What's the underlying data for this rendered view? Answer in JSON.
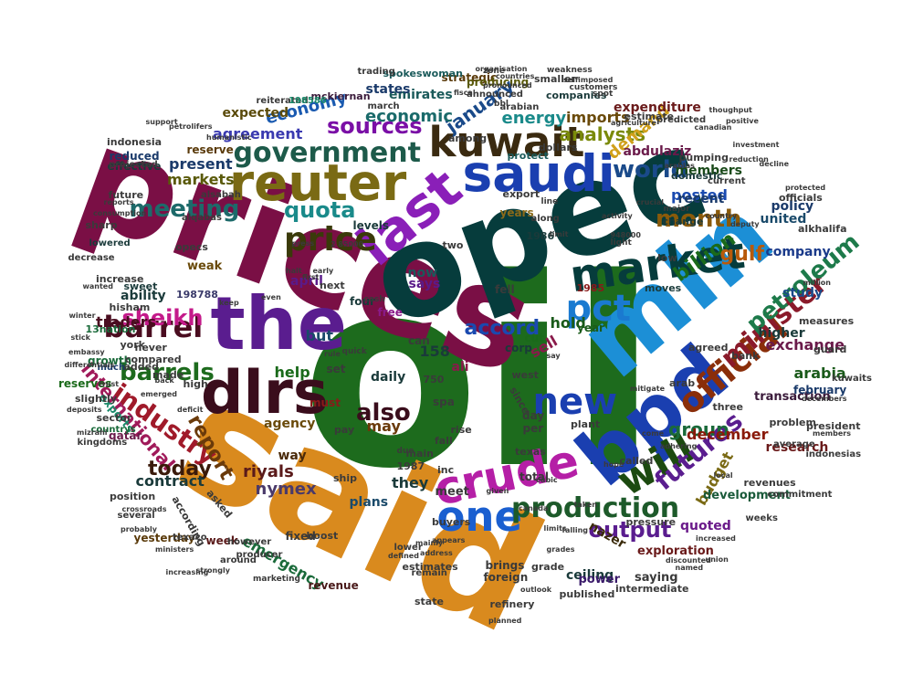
{
  "words": [
    {
      "text": "oil",
      "color": "#1d6b1d"
    },
    {
      "text": "said",
      "color": "#d98a1e"
    },
    {
      "text": "prices",
      "color": "#7a0f45"
    },
    {
      "text": "opec",
      "color": "#063c3c"
    },
    {
      "text": "mln",
      "color": "#1c8fd6"
    },
    {
      "text": "the",
      "color": "#5a1d8f"
    },
    {
      "text": "bpd",
      "color": "#1a3fb0"
    },
    {
      "text": "dlrs",
      "color": "#3a0d1c"
    },
    {
      "text": "market",
      "color": "#063c3c"
    },
    {
      "text": "reuter",
      "color": "#7a6a14"
    },
    {
      "text": "saudi",
      "color": "#1a3fb0"
    },
    {
      "text": "last",
      "color": "#8a1fb8"
    },
    {
      "text": "crude",
      "color": "#b51fa6"
    },
    {
      "text": "will",
      "color": "#1c4a10"
    },
    {
      "text": "kuwait",
      "color": "#3a2a10"
    },
    {
      "text": "official",
      "color": "#8a2e0a"
    },
    {
      "text": "one",
      "color": "#1a5fd0"
    },
    {
      "text": "government",
      "color": "#1d5a4a"
    },
    {
      "text": "new",
      "color": "#1a3fb0"
    },
    {
      "text": "barrel",
      "color": "#4a0d20"
    },
    {
      "text": "price",
      "color": "#3a3a0a"
    },
    {
      "text": "pct",
      "color": "#1a7ad0"
    },
    {
      "text": "production",
      "color": "#1d5a2a"
    },
    {
      "text": "industry",
      "color": "#a01a2a"
    },
    {
      "text": "sheikh",
      "color": "#c41a8a"
    },
    {
      "text": "minister",
      "color": "#8a1a2a"
    },
    {
      "text": "meeting",
      "color": "#1d6a6a"
    },
    {
      "text": "world",
      "color": "#1a4a8a"
    },
    {
      "text": "barrels",
      "color": "#1d6b1d"
    },
    {
      "text": "petroleum",
      "color": "#1d7a4a"
    },
    {
      "text": "month",
      "color": "#8a5a0a"
    },
    {
      "text": "sources",
      "color": "#7a0fa6"
    },
    {
      "text": "quota",
      "color": "#1a8a8a"
    },
    {
      "text": "international",
      "color": "#a01a5a"
    },
    {
      "text": "futures",
      "color": "#5a1d8f"
    },
    {
      "text": "output",
      "color": "#5a1d8f"
    },
    {
      "text": "report",
      "color": "#6a3a0a"
    },
    {
      "text": "also",
      "color": "#3a0d1c"
    },
    {
      "text": "billion",
      "color": "#1a6a1a"
    },
    {
      "text": "analysts",
      "color": "#7a8a0a"
    },
    {
      "text": "gulf",
      "color": "#b85a0a"
    },
    {
      "text": "january",
      "color": "#1a4a8a"
    },
    {
      "text": "today",
      "color": "#3a1a0a"
    },
    {
      "text": "accord",
      "color": "#1a4ab0"
    },
    {
      "text": "group",
      "color": "#1a6a3a"
    },
    {
      "text": "demand",
      "color": "#d0a01a"
    },
    {
      "text": "economic",
      "color": "#1a6a6a"
    },
    {
      "text": "energy",
      "color": "#1a8a8a"
    },
    {
      "text": "economy",
      "color": "#1a5ab0"
    },
    {
      "text": "imports",
      "color": "#6a4a0a"
    },
    {
      "text": "agreement",
      "color": "#3a3ab0"
    },
    {
      "text": "markets",
      "color": "#5a5a0a"
    },
    {
      "text": "present",
      "color": "#1a3a6a"
    },
    {
      "text": "posted",
      "color": "#1a4ab0"
    },
    {
      "text": "traders",
      "color": "#4a0d20"
    },
    {
      "text": "help",
      "color": "#1a6a1a"
    },
    {
      "text": "but",
      "color": "#1a4a6a"
    },
    {
      "text": "exchange",
      "color": "#6a1a4a"
    },
    {
      "text": "december",
      "color": "#8a1a0a"
    },
    {
      "text": "budget",
      "color": "#7a6a14"
    },
    {
      "text": "nymex",
      "color": "#4a3a6a"
    },
    {
      "text": "riyals",
      "color": "#5a1a1a"
    },
    {
      "text": "they",
      "color": "#1a3a3a"
    },
    {
      "text": "may",
      "color": "#6a3a0a"
    },
    {
      "text": "daily",
      "color": "#1a3a3a"
    },
    {
      "text": "emergency",
      "color": "#1a6a3a"
    },
    {
      "text": "contract",
      "color": "#1a3a3a"
    },
    {
      "text": "agency",
      "color": "#6a4a0a"
    },
    {
      "text": "arabia",
      "color": "#1a5a1a"
    },
    {
      "text": "hold",
      "color": "#1a5a1a"
    },
    {
      "text": "sell",
      "color": "#8a1a4a"
    },
    {
      "text": "quoted",
      "color": "#6a1a8a"
    },
    {
      "text": "research",
      "color": "#6a1a1a"
    },
    {
      "text": "company",
      "color": "#1a3a8a"
    },
    {
      "text": "members",
      "color": "#1a4a1a"
    },
    {
      "text": "united",
      "color": "#1a4a6a"
    },
    {
      "text": "policy",
      "color": "#1a3a6a"
    },
    {
      "text": "abdulaziz",
      "color": "#6a1a4a"
    },
    {
      "text": "expenditure",
      "color": "#6a1a1a"
    },
    {
      "text": "emirates",
      "color": "#1a5a5a"
    },
    {
      "text": "states",
      "color": "#1a3a6a"
    },
    {
      "text": "expected",
      "color": "#5a4a0a"
    },
    {
      "text": "reserve",
      "color": "#5a3a0a"
    },
    {
      "text": "reserves",
      "color": "#1a6a1a"
    },
    {
      "text": "growth",
      "color": "#1a6a3a"
    },
    {
      "text": "exports",
      "color": "#1a8a6a"
    },
    {
      "text": "ability",
      "color": "#1a3a3a"
    },
    {
      "text": "says",
      "color": "#5a1a8a"
    },
    {
      "text": "recent",
      "color": "#1a3a6a"
    },
    {
      "text": "year",
      "color": "#1a5a1a"
    },
    {
      "text": "study",
      "color": "#1a4a8a"
    },
    {
      "text": "higher",
      "color": "#1a3a3a"
    },
    {
      "text": "ceiling",
      "color": "#1a3a3a"
    },
    {
      "text": "nazer",
      "color": "#3a2a0a"
    },
    {
      "text": "exploration",
      "color": "#6a1a1a"
    },
    {
      "text": "saying",
      "color": "#3a3a3a"
    },
    {
      "text": "power",
      "color": "#3a1a6a"
    },
    {
      "text": "development",
      "color": "#1a5a3a"
    },
    {
      "text": "transaction",
      "color": "#3a1a3a"
    },
    {
      "text": "weak",
      "color": "#6a4a0a"
    },
    {
      "text": "qatar",
      "color": "#6a1a4a"
    },
    {
      "text": "effective",
      "color": "#1a3a3a"
    },
    {
      "text": "reduced",
      "color": "#1a3a6a"
    },
    {
      "text": "yesterday",
      "color": "#5a3a0a"
    },
    {
      "text": "week",
      "color": "#5a1a1a"
    },
    {
      "text": "revenue",
      "color": "#4a1a1a"
    },
    {
      "text": "plans",
      "color": "#1a4a6a"
    },
    {
      "text": "fixed",
      "color": "#3a3a3a"
    },
    {
      "text": "way",
      "color": "#4a2a0a"
    },
    {
      "text": "158",
      "color": "#1a3a3a"
    },
    {
      "text": "ali",
      "color": "#8a1a4a"
    },
    {
      "text": "free",
      "color": "#8a1a8a"
    },
    {
      "text": "april",
      "color": "#5a1a8a"
    },
    {
      "text": "four",
      "color": "#1a3a3a"
    },
    {
      "text": "corp",
      "color": "#1a3a3a"
    },
    {
      "text": "cut",
      "color": "#1a6a1a"
    },
    {
      "text": "fell",
      "color": "#3a3a3a"
    },
    {
      "text": "now",
      "color": "#1a5a5a"
    },
    {
      "text": "levels",
      "color": "#1a3a3a"
    },
    {
      "text": "years",
      "color": "#8a6a1a"
    },
    {
      "text": "export",
      "color": "#3a3a3a"
    },
    {
      "text": "change",
      "color": "#1a3a3a"
    },
    {
      "text": "domestic",
      "color": "#1a3a3a"
    },
    {
      "text": "low",
      "color": "#3a3a3a"
    },
    {
      "text": "1985",
      "color": "#8a1a1a"
    },
    {
      "text": "moves",
      "color": "#1a3a3a"
    },
    {
      "text": "1986",
      "color": "#1a3a3a"
    },
    {
      "text": "strategic",
      "color": "#5a3a0a"
    },
    {
      "text": "producing",
      "color": "#5a5a0a"
    },
    {
      "text": "among",
      "color": "#3a3a3a"
    },
    {
      "text": "protect",
      "color": "#1a5a5a"
    },
    {
      "text": "estimate",
      "color": "#3a3a3a"
    },
    {
      "text": "companies",
      "color": "#1a3a3a"
    },
    {
      "text": "smaller",
      "color": "#3a3a3a"
    },
    {
      "text": "dollars",
      "color": "#3a3a3a"
    },
    {
      "text": "spokeswoman",
      "color": "#1a5a5a"
    },
    {
      "text": "mckiernan",
      "color": "#3a1a3a"
    },
    {
      "text": "reiterated",
      "color": "#3a3a3a"
    },
    {
      "text": "198586",
      "color": "#1a8a6a"
    },
    {
      "text": "198788",
      "color": "#3a3a6a"
    },
    {
      "text": "sweet",
      "color": "#1a3a3a"
    },
    {
      "text": "opecs",
      "color": "#3a3a3a"
    },
    {
      "text": "increase",
      "color": "#3a3a3a"
    },
    {
      "text": "decrease",
      "color": "#3a3a3a"
    },
    {
      "text": "lowered",
      "color": "#1a3a3a"
    },
    {
      "text": "hisham",
      "color": "#3a3a3a"
    },
    {
      "text": "13nation",
      "color": "#1a6a3a"
    },
    {
      "text": "compared",
      "color": "#3a3a3a"
    },
    {
      "text": "slightly",
      "color": "#3a3a3a"
    },
    {
      "text": "sector",
      "color": "#3a3a3a"
    },
    {
      "text": "countrys",
      "color": "#1a6a3a"
    },
    {
      "text": "kingdoms",
      "color": "#3a3a3a"
    },
    {
      "text": "added",
      "color": "#3a3a3a"
    },
    {
      "text": "made",
      "color": "#3a3a3a"
    },
    {
      "text": "high",
      "color": "#3a3a3a"
    },
    {
      "text": "much",
      "color": "#1a3a6a"
    },
    {
      "text": "never",
      "color": "#3a3a3a"
    },
    {
      "text": "york",
      "color": "#3a3a3a"
    },
    {
      "text": "must",
      "color": "#8a1a1a"
    },
    {
      "text": "set",
      "color": "#3a3a3a"
    },
    {
      "text": "can",
      "color": "#3a3a3a"
    },
    {
      "text": "meet",
      "color": "#3a3a3a"
    },
    {
      "text": "inc",
      "color": "#3a3a3a"
    },
    {
      "text": "fall",
      "color": "#3a3a3a"
    },
    {
      "text": "rise",
      "color": "#3a3a3a"
    },
    {
      "text": "texas",
      "color": "#3a3a3a"
    },
    {
      "text": "total",
      "color": "#3a3a3a"
    },
    {
      "text": "per",
      "color": "#3a3a3a"
    },
    {
      "text": "day",
      "color": "#3a3a3a"
    },
    {
      "text": "three",
      "color": "#3a3a3a"
    },
    {
      "text": "february",
      "color": "#1a3a6a"
    },
    {
      "text": "measures",
      "color": "#3a3a3a"
    },
    {
      "text": "president",
      "color": "#3a3a3a"
    },
    {
      "text": "officials",
      "color": "#3a3a3a"
    },
    {
      "text": "alkhalifa",
      "color": "#3a3a3a"
    },
    {
      "text": "agreed",
      "color": "#3a3a3a"
    },
    {
      "text": "bank",
      "color": "#3a3a3a"
    },
    {
      "text": "pumping",
      "color": "#3a3a3a"
    },
    {
      "text": "arab",
      "color": "#3a3a3a"
    },
    {
      "text": "revenues",
      "color": "#3a3a3a"
    },
    {
      "text": "called",
      "color": "#3a3a3a"
    },
    {
      "text": "plant",
      "color": "#3a3a3a"
    },
    {
      "text": "problem",
      "color": "#3a3a3a"
    },
    {
      "text": "indonesias",
      "color": "#3a3a3a"
    },
    {
      "text": "guard",
      "color": "#3a3a3a"
    },
    {
      "text": "kuwaits",
      "color": "#3a3a3a"
    },
    {
      "text": "average",
      "color": "#3a3a3a"
    },
    {
      "text": "weeks",
      "color": "#3a3a3a"
    },
    {
      "text": "commitment",
      "color": "#3a3a3a"
    },
    {
      "text": "intermediate",
      "color": "#3a3a3a"
    },
    {
      "text": "published",
      "color": "#3a3a3a"
    },
    {
      "text": "brings",
      "color": "#3a3a3a"
    },
    {
      "text": "foreign",
      "color": "#3a3a3a"
    },
    {
      "text": "refinery",
      "color": "#3a3a3a"
    },
    {
      "text": "grade",
      "color": "#3a3a3a"
    },
    {
      "text": "buyers",
      "color": "#3a3a3a"
    },
    {
      "text": "estimates",
      "color": "#3a3a3a"
    },
    {
      "text": "remain",
      "color": "#3a3a3a"
    },
    {
      "text": "lower",
      "color": "#3a3a3a"
    },
    {
      "text": "boost",
      "color": "#3a3a3a"
    },
    {
      "text": "ship",
      "color": "#3a3a3a"
    },
    {
      "text": "state",
      "color": "#3a3a3a"
    },
    {
      "text": "according",
      "color": "#3a3a3a"
    },
    {
      "text": "asked",
      "color": "#3a3a3a"
    },
    {
      "text": "position",
      "color": "#3a3a3a"
    },
    {
      "text": "texaco",
      "color": "#3a3a3a"
    },
    {
      "text": "however",
      "color": "#3a3a3a"
    },
    {
      "text": "producer",
      "color": "#3a3a3a"
    },
    {
      "text": "around",
      "color": "#3a3a3a"
    },
    {
      "text": "several",
      "color": "#3a3a3a"
    },
    {
      "text": "marketing",
      "color": "#3a3a3a"
    },
    {
      "text": "pressure",
      "color": "#3a3a3a"
    },
    {
      "text": "1987",
      "color": "#3a3a3a"
    },
    {
      "text": "quick",
      "color": "#3a3a3a"
    },
    {
      "text": "sharp",
      "color": "#3a3a3a"
    },
    {
      "text": "future",
      "color": "#3a3a3a"
    },
    {
      "text": "projected",
      "color": "#3a3a3a"
    },
    {
      "text": "indonesia",
      "color": "#3a3a3a"
    },
    {
      "text": "alqabas",
      "color": "#3a3a3a"
    },
    {
      "text": "alsabah",
      "color": "#3a3a3a"
    },
    {
      "text": "current",
      "color": "#3a3a3a"
    },
    {
      "text": "predicted",
      "color": "#3a3a3a"
    },
    {
      "text": "arabian",
      "color": "#3a3a3a"
    },
    {
      "text": "march",
      "color": "#3a3a3a"
    },
    {
      "text": "announced",
      "color": "#3a3a3a"
    },
    {
      "text": "weakness",
      "color": "#3a3a3a"
    },
    {
      "text": "customers",
      "color": "#3a3a3a"
    },
    {
      "text": "spot",
      "color": "#3a3a3a"
    },
    {
      "text": "major",
      "color": "#3a3a3a"
    },
    {
      "text": "cash",
      "color": "#3a3a3a"
    },
    {
      "text": "two",
      "color": "#3a3a3a"
    },
    {
      "text": "along",
      "color": "#3a3a3a"
    },
    {
      "text": "light",
      "color": "#3a3a3a"
    },
    {
      "text": "2 85000",
      "color": "#3a3a3a"
    },
    {
      "text": "948000",
      "color": "#3a3a3a"
    },
    {
      "text": "next",
      "color": "#3a3a3a"
    },
    {
      "text": "west",
      "color": "#3a3a3a"
    },
    {
      "text": "since",
      "color": "#3a3a3a"
    },
    {
      "text": "spa",
      "color": "#3a3a3a"
    },
    {
      "text": "750",
      "color": "#3a3a3a"
    },
    {
      "text": "main",
      "color": "#3a3a3a"
    },
    {
      "text": "due",
      "color": "#3a3a3a"
    },
    {
      "text": "pay",
      "color": "#3a3a3a"
    },
    {
      "text": "bbl",
      "color": "#3a3a3a"
    },
    {
      "text": "line",
      "color": "#3a3a3a"
    },
    {
      "text": "zone",
      "color": "#3a3a3a"
    },
    {
      "text": "trading",
      "color": "#3a3a3a"
    },
    {
      "text": "organisation",
      "color": "#3a3a3a"
    },
    {
      "text": "countries",
      "color": "#3a3a3a"
    },
    {
      "text": "agriculture",
      "color": "#3a3a3a"
    },
    {
      "text": "thoughput",
      "color": "#3a3a3a"
    },
    {
      "text": "positive",
      "color": "#3a3a3a"
    },
    {
      "text": "investment",
      "color": "#3a3a3a"
    },
    {
      "text": "decline",
      "color": "#3a3a3a"
    },
    {
      "text": "million",
      "color": "#3a3a3a"
    },
    {
      "text": "decembers",
      "color": "#3a3a3a"
    },
    {
      "text": "winter",
      "color": "#3a3a3a"
    },
    {
      "text": "embassy",
      "color": "#3a3a3a"
    },
    {
      "text": "differentials",
      "color": "#3a3a3a"
    },
    {
      "text": "mizrahi",
      "color": "#3a3a3a"
    },
    {
      "text": "wanted",
      "color": "#3a3a3a"
    },
    {
      "text": "support",
      "color": "#3a3a3a"
    },
    {
      "text": "petrolifers",
      "color": "#3a3a3a"
    },
    {
      "text": "humanistic",
      "color": "#3a3a3a"
    },
    {
      "text": "reports",
      "color": "#3a3a3a"
    },
    {
      "text": "consumption",
      "color": "#3a3a3a"
    },
    {
      "text": "crossroads",
      "color": "#3a3a3a"
    },
    {
      "text": "ministers",
      "color": "#3a3a3a"
    },
    {
      "text": "probably",
      "color": "#3a3a3a"
    },
    {
      "text": "limits",
      "color": "#3a3a3a"
    },
    {
      "text": "falling",
      "color": "#3a3a3a"
    },
    {
      "text": "taken",
      "color": "#3a3a3a"
    },
    {
      "text": "planned",
      "color": "#3a3a3a"
    },
    {
      "text": "outlook",
      "color": "#3a3a3a"
    },
    {
      "text": "discounted",
      "color": "#3a3a3a"
    },
    {
      "text": "union",
      "color": "#3a3a3a"
    },
    {
      "text": "named",
      "color": "#3a3a3a"
    },
    {
      "text": "local",
      "color": "#3a3a3a"
    },
    {
      "text": "come",
      "color": "#3a3a3a"
    },
    {
      "text": "country",
      "color": "#3a3a3a"
    },
    {
      "text": "deputy",
      "color": "#3a3a3a"
    },
    {
      "text": "protected",
      "color": "#3a3a3a"
    },
    {
      "text": "limit",
      "color": "#3a3a3a"
    },
    {
      "text": "press",
      "color": "#3a3a3a"
    },
    {
      "text": "increasing",
      "color": "#3a3a3a"
    },
    {
      "text": "strongly",
      "color": "#3a3a3a"
    },
    {
      "text": "address",
      "color": "#3a3a3a"
    },
    {
      "text": "defined",
      "color": "#3a3a3a"
    },
    {
      "text": "given",
      "color": "#3a3a3a"
    },
    {
      "text": "pronounced",
      "color": "#3a3a3a"
    },
    {
      "text": "fiscal",
      "color": "#3a3a3a"
    },
    {
      "text": "first",
      "color": "#3a3a3a"
    },
    {
      "text": "halt",
      "color": "#3a3a3a"
    },
    {
      "text": "early",
      "color": "#3a3a3a"
    },
    {
      "text": "activity",
      "color": "#3a3a3a"
    },
    {
      "text": "crucial",
      "color": "#3a3a3a"
    },
    {
      "text": "arabias",
      "color": "#3a3a3a"
    },
    {
      "text": "reduction",
      "color": "#3a3a3a"
    },
    {
      "text": "canadian",
      "color": "#3a3a3a"
    },
    {
      "text": "selfimposed",
      "color": "#3a3a3a"
    },
    {
      "text": "stick",
      "color": "#3a3a3a"
    },
    {
      "text": "deposits",
      "color": "#3a3a3a"
    },
    {
      "text": "trust",
      "color": "#3a3a3a"
    },
    {
      "text": "keep",
      "color": "#3a3a3a"
    },
    {
      "text": "even",
      "color": "#3a3a3a"
    },
    {
      "text": "rule",
      "color": "#3a3a3a"
    },
    {
      "text": "say",
      "color": "#3a3a3a"
    },
    {
      "text": "back",
      "color": "#3a3a3a"
    },
    {
      "text": "deficit",
      "color": "#3a3a3a"
    },
    {
      "text": "emerged",
      "color": "#3a3a3a"
    },
    {
      "text": "members",
      "color": "#3a3a3a"
    },
    {
      "text": "mitigate",
      "color": "#3a3a3a"
    },
    {
      "text": "increased",
      "color": "#3a3a3a"
    },
    {
      "text": "adhering",
      "color": "#3a3a3a"
    },
    {
      "text": "grades",
      "color": "#3a3a3a"
    },
    {
      "text": "mainly",
      "color": "#3a3a3a"
    },
    {
      "text": "cubic",
      "color": "#3a3a3a"
    },
    {
      "text": "appears",
      "color": "#3a3a3a"
    },
    {
      "text": "canada",
      "color": "#3a3a3a"
    },
    {
      "text": "hope",
      "color": "#3a3a3a"
    }
  ]
}
